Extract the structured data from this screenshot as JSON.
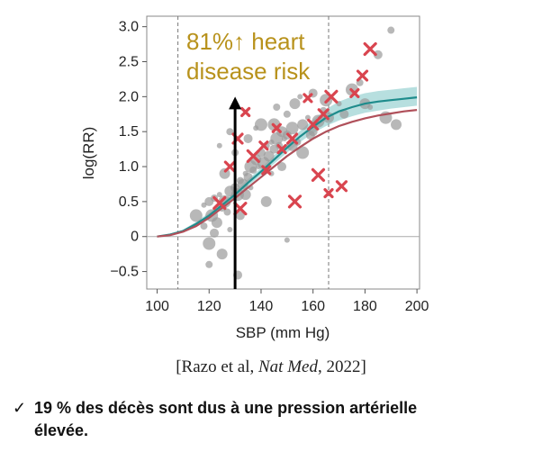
{
  "chart_data": {
    "type": "line",
    "xlabel": "SBP (mm Hg)",
    "ylabel": "log(RR)",
    "xlim": [
      96,
      201
    ],
    "ylim": [
      -0.75,
      3.15
    ],
    "x_ticks": [
      "100",
      "120",
      "140",
      "160",
      "180",
      "200"
    ],
    "y_ticks": [
      "−0.5",
      "0",
      "0.5",
      "1.0",
      "1.5",
      "2.0",
      "2.5",
      "3.0"
    ],
    "reference_lines_x": [
      108,
      166
    ],
    "arrow": {
      "x": 130,
      "y_from": -0.75,
      "y_to": 2.0
    },
    "annotation": {
      "line1": "81%↑ heart",
      "line2": "disease risk"
    },
    "series": [
      {
        "name": "teal-fit",
        "color": "#1e8c8c",
        "x": [
          100,
          105,
          110,
          115,
          120,
          125,
          130,
          135,
          140,
          145,
          150,
          155,
          160,
          165,
          170,
          175,
          180,
          185,
          190,
          195,
          200
        ],
        "y": [
          0,
          0.03,
          0.08,
          0.18,
          0.3,
          0.45,
          0.6,
          0.77,
          0.93,
          1.1,
          1.27,
          1.43,
          1.57,
          1.7,
          1.79,
          1.85,
          1.9,
          1.93,
          1.95,
          1.97,
          1.99
        ],
        "band_low": [
          0,
          0.02,
          0.06,
          0.15,
          0.26,
          0.41,
          0.56,
          0.72,
          0.88,
          1.04,
          1.2,
          1.35,
          1.48,
          1.58,
          1.66,
          1.72,
          1.77,
          1.8,
          1.83,
          1.85,
          1.87
        ],
        "band_high": [
          0,
          0.04,
          0.1,
          0.21,
          0.34,
          0.49,
          0.65,
          0.82,
          0.98,
          1.16,
          1.34,
          1.51,
          1.67,
          1.82,
          1.93,
          2.0,
          2.05,
          2.08,
          2.1,
          2.12,
          2.14
        ]
      },
      {
        "name": "red-fit",
        "color": "#b0505a",
        "x": [
          100,
          105,
          110,
          115,
          120,
          125,
          130,
          135,
          140,
          145,
          150,
          155,
          160,
          165,
          170,
          175,
          180,
          185,
          190,
          195,
          200
        ],
        "y": [
          0,
          0.02,
          0.07,
          0.15,
          0.27,
          0.41,
          0.55,
          0.7,
          0.85,
          1.0,
          1.15,
          1.28,
          1.4,
          1.5,
          1.58,
          1.64,
          1.69,
          1.73,
          1.76,
          1.79,
          1.81
        ]
      }
    ],
    "scatter_gray": [
      [
        118,
        0.45
      ],
      [
        120,
        0.5
      ],
      [
        121,
        0.3
      ],
      [
        122,
        0.55
      ],
      [
        123,
        0.2
      ],
      [
        124,
        0.6
      ],
      [
        125,
        0.42
      ],
      [
        126,
        0.5
      ],
      [
        127,
        0.35
      ],
      [
        128,
        0.65
      ],
      [
        129,
        0.55
      ],
      [
        130,
        0.7
      ],
      [
        131,
        0.6
      ],
      [
        132,
        0.8
      ],
      [
        133,
        0.75
      ],
      [
        134,
        0.9
      ],
      [
        135,
        0.85
      ],
      [
        136,
        1.0
      ],
      [
        137,
        0.95
      ],
      [
        138,
        1.1
      ],
      [
        139,
        1.0
      ],
      [
        140,
        1.2
      ],
      [
        141,
        1.05
      ],
      [
        142,
        1.3
      ],
      [
        143,
        1.15
      ],
      [
        144,
        1.35
      ],
      [
        145,
        1.25
      ],
      [
        146,
        1.4
      ],
      [
        147,
        1.3
      ],
      [
        148,
        1.5
      ],
      [
        149,
        1.4
      ],
      [
        150,
        1.45
      ],
      [
        152,
        1.55
      ],
      [
        154,
        1.35
      ],
      [
        156,
        1.6
      ],
      [
        158,
        1.7
      ],
      [
        160,
        1.5
      ],
      [
        162,
        1.65
      ],
      [
        164,
        1.8
      ],
      [
        166,
        1.7
      ],
      [
        170,
        1.9
      ],
      [
        172,
        1.75
      ],
      [
        175,
        2.1
      ],
      [
        178,
        2.2
      ],
      [
        180,
        1.9
      ],
      [
        182,
        1.85
      ],
      [
        185,
        2.6
      ],
      [
        188,
        1.7
      ],
      [
        190,
        2.95
      ],
      [
        192,
        1.6
      ],
      [
        138,
        1.55
      ],
      [
        135,
        1.4
      ],
      [
        140,
        1.6
      ],
      [
        130,
        1.2
      ],
      [
        126,
        0.9
      ],
      [
        124,
        1.3
      ],
      [
        122,
        0.05
      ],
      [
        120,
        -0.1
      ],
      [
        120,
        -0.4
      ],
      [
        125,
        -0.25
      ],
      [
        128,
        0.1
      ],
      [
        132,
        0.3
      ],
      [
        145,
        1.6
      ],
      [
        150,
        1.75
      ],
      [
        153,
        1.9
      ],
      [
        155,
        2.0
      ],
      [
        160,
        2.05
      ],
      [
        165,
        1.95
      ],
      [
        128,
        1.5
      ],
      [
        142,
        0.5
      ],
      [
        150,
        -0.05
      ],
      [
        131,
        -0.55
      ],
      [
        115,
        0.3
      ],
      [
        118,
        0.15
      ],
      [
        134,
        0.6
      ],
      [
        144,
        0.9
      ],
      [
        148,
        1.0
      ],
      [
        156,
        1.2
      ],
      [
        146,
        1.85
      ],
      [
        152,
        1.3
      ],
      [
        136,
        0.7
      ],
      [
        159,
        1.45
      ]
    ],
    "scatter_red_x": [
      [
        134,
        1.78
      ],
      [
        131,
        1.4
      ],
      [
        137,
        1.15
      ],
      [
        141,
        1.3
      ],
      [
        128,
        1.0
      ],
      [
        132,
        0.4
      ],
      [
        158,
        1.98
      ],
      [
        164,
        1.75
      ],
      [
        167,
        2.0
      ],
      [
        176,
        2.05
      ],
      [
        179,
        2.3
      ],
      [
        182,
        2.68
      ],
      [
        146,
        1.55
      ],
      [
        152,
        1.4
      ],
      [
        162,
        0.88
      ],
      [
        166,
        0.62
      ],
      [
        171,
        0.72
      ],
      [
        153,
        0.5
      ],
      [
        148,
        1.25
      ],
      [
        160,
        1.6
      ],
      [
        124,
        0.48
      ],
      [
        142,
        0.95
      ]
    ]
  },
  "caption": {
    "citation_prefix": "[Razo et al, ",
    "citation_journal": "Nat Med",
    "citation_suffix": ", 2022]",
    "check_icon": "✓",
    "note_line1": "19 % des décès sont dus à une pression artérielle",
    "note_line2": "élevée."
  }
}
